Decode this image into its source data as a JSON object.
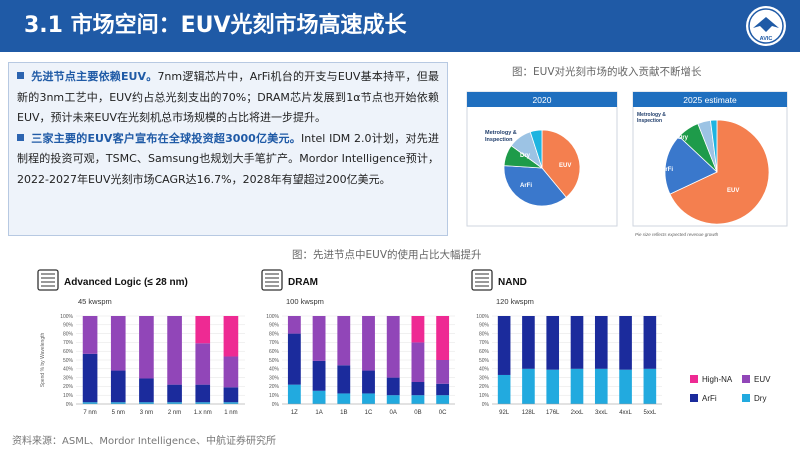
{
  "header": {
    "title": "3.1 市场空间：EUV光刻市场高速成长",
    "logo_text": "AVIC"
  },
  "bullets": [
    {
      "highlight": "先进节点主要依赖EUV。",
      "text": "7nm逻辑芯片中，ArFi机台的开支与EUV基本持平，但最新的3nm工艺中，EUV约占总光刻支出的70%；DRAM芯片发展到1α节点也开始依赖EUV，预计未来EUV在光刻机总市场规模的占比将进一步提升。"
    },
    {
      "highlight": "三家主要的EUV客户宣布在全球投资超3000亿美元。",
      "text": "Intel IDM 2.0计划，对先进制程的投资可观，TSMC、Samsung也规划大手笔扩产。Mordor Intelligence预计，2022-2027年EUV光刻市场CAGR达16.7%，2028年有望超过200亿美元。"
    }
  ],
  "captions": {
    "pie_figure": "图：EUV对光刻市场的收入贡献不断增长",
    "bar_figure": "图：先进节点中EUV的使用占比大幅提升"
  },
  "footer": "资料来源：ASML、Mordor Intelligence、中航证券研究所",
  "pie_footnote": "Pie size reflects expected revenue growth",
  "colors": {
    "header_bg": "#1f5aa6",
    "euv": "#f47f4f",
    "arfi": "#3a78cc",
    "dry": "#1fb4e0",
    "metrology": "#1e9b4a",
    "other": "#9cc3e4",
    "bar_euv": "#9146b8",
    "bar_highna": "#ee2a93",
    "bar_arfi": "#1b2b9c",
    "bar_dry": "#22aadf"
  },
  "chart_data": [
    {
      "type": "pie",
      "title": "2020",
      "slices": [
        {
          "label": "EUV",
          "value": 39,
          "color": "#f47f4f"
        },
        {
          "label": "ArFi",
          "value": 37,
          "color": "#3a78cc"
        },
        {
          "label": "Dry",
          "value": 9,
          "color": "#1e9b4a"
        },
        {
          "label": "Metrology & Inspection",
          "value": 10,
          "color": "#9cc3e4"
        },
        {
          "label": "",
          "value": 5,
          "color": "#1fb4e0"
        }
      ]
    },
    {
      "type": "pie",
      "title": "2025 estimate",
      "slices": [
        {
          "label": "EUV",
          "value": 68,
          "color": "#f47f4f"
        },
        {
          "label": "ArFi",
          "value": 19,
          "color": "#3a78cc"
        },
        {
          "label": "Dry",
          "value": 7,
          "color": "#1e9b4a"
        },
        {
          "label": "Metrology & Inspection",
          "value": 4,
          "color": "#9cc3e4"
        },
        {
          "label": "",
          "value": 2,
          "color": "#1fb4e0"
        }
      ]
    },
    {
      "type": "bar",
      "stacked": true,
      "title": "Advanced Logic (≤ 28 nm)",
      "subtitle": "45 kwspm",
      "ylabel": "Spend % by Wavelength",
      "ylim": [
        0,
        100
      ],
      "yticks": [
        "0%",
        "10%",
        "20%",
        "30%",
        "40%",
        "50%",
        "60%",
        "70%",
        "80%",
        "90%",
        "100%"
      ],
      "categories": [
        "7 nm",
        "5 nm",
        "3 nm",
        "2 nm",
        "1.x nm",
        "1 nm"
      ],
      "series": [
        {
          "name": "Dry",
          "color": "#22aadf",
          "values": [
            2,
            2,
            2,
            2,
            2,
            2
          ]
        },
        {
          "name": "ArFi",
          "color": "#1b2b9c",
          "values": [
            55,
            36,
            27,
            20,
            20,
            17
          ]
        },
        {
          "name": "EUV",
          "color": "#9146b8",
          "values": [
            43,
            62,
            71,
            78,
            47,
            35
          ]
        },
        {
          "name": "High-NA",
          "color": "#ee2a93",
          "values": [
            0,
            0,
            0,
            0,
            31,
            46
          ]
        }
      ]
    },
    {
      "type": "bar",
      "stacked": true,
      "title": "DRAM",
      "subtitle": "100 kwspm",
      "ylim": [
        0,
        100
      ],
      "yticks": [
        "0%",
        "10%",
        "20%",
        "30%",
        "40%",
        "50%",
        "60%",
        "70%",
        "80%",
        "90%",
        "100%"
      ],
      "categories": [
        "1Z",
        "1A",
        "1B",
        "1C",
        "0A",
        "0B",
        "0C"
      ],
      "series": [
        {
          "name": "Dry",
          "color": "#22aadf",
          "values": [
            22,
            15,
            12,
            12,
            10,
            10,
            10
          ]
        },
        {
          "name": "ArFi",
          "color": "#1b2b9c",
          "values": [
            58,
            34,
            32,
            26,
            20,
            15,
            13
          ]
        },
        {
          "name": "EUV",
          "color": "#9146b8",
          "values": [
            20,
            51,
            56,
            62,
            70,
            45,
            27
          ]
        },
        {
          "name": "High-NA",
          "color": "#ee2a93",
          "values": [
            0,
            0,
            0,
            0,
            0,
            30,
            50
          ]
        }
      ]
    },
    {
      "type": "bar",
      "stacked": true,
      "title": "NAND",
      "subtitle": "120 kwspm",
      "ylim": [
        0,
        100
      ],
      "yticks": [
        "0%",
        "10%",
        "20%",
        "30%",
        "40%",
        "50%",
        "60%",
        "70%",
        "80%",
        "90%",
        "100%"
      ],
      "categories": [
        "92L",
        "128L",
        "176L",
        "2xxL",
        "3xxL",
        "4xxL",
        "5xxL"
      ],
      "series": [
        {
          "name": "Dry",
          "color": "#22aadf",
          "values": [
            33,
            40,
            39,
            40,
            40,
            39,
            40
          ]
        },
        {
          "name": "ArFi",
          "color": "#1b2b9c",
          "values": [
            67,
            60,
            61,
            60,
            60,
            61,
            60
          ]
        }
      ]
    }
  ],
  "bar_legend": [
    {
      "label": "High-NA",
      "color": "#ee2a93"
    },
    {
      "label": "EUV",
      "color": "#9146b8"
    },
    {
      "label": "ArFi",
      "color": "#1b2b9c"
    },
    {
      "label": "Dry",
      "color": "#22aadf"
    }
  ]
}
